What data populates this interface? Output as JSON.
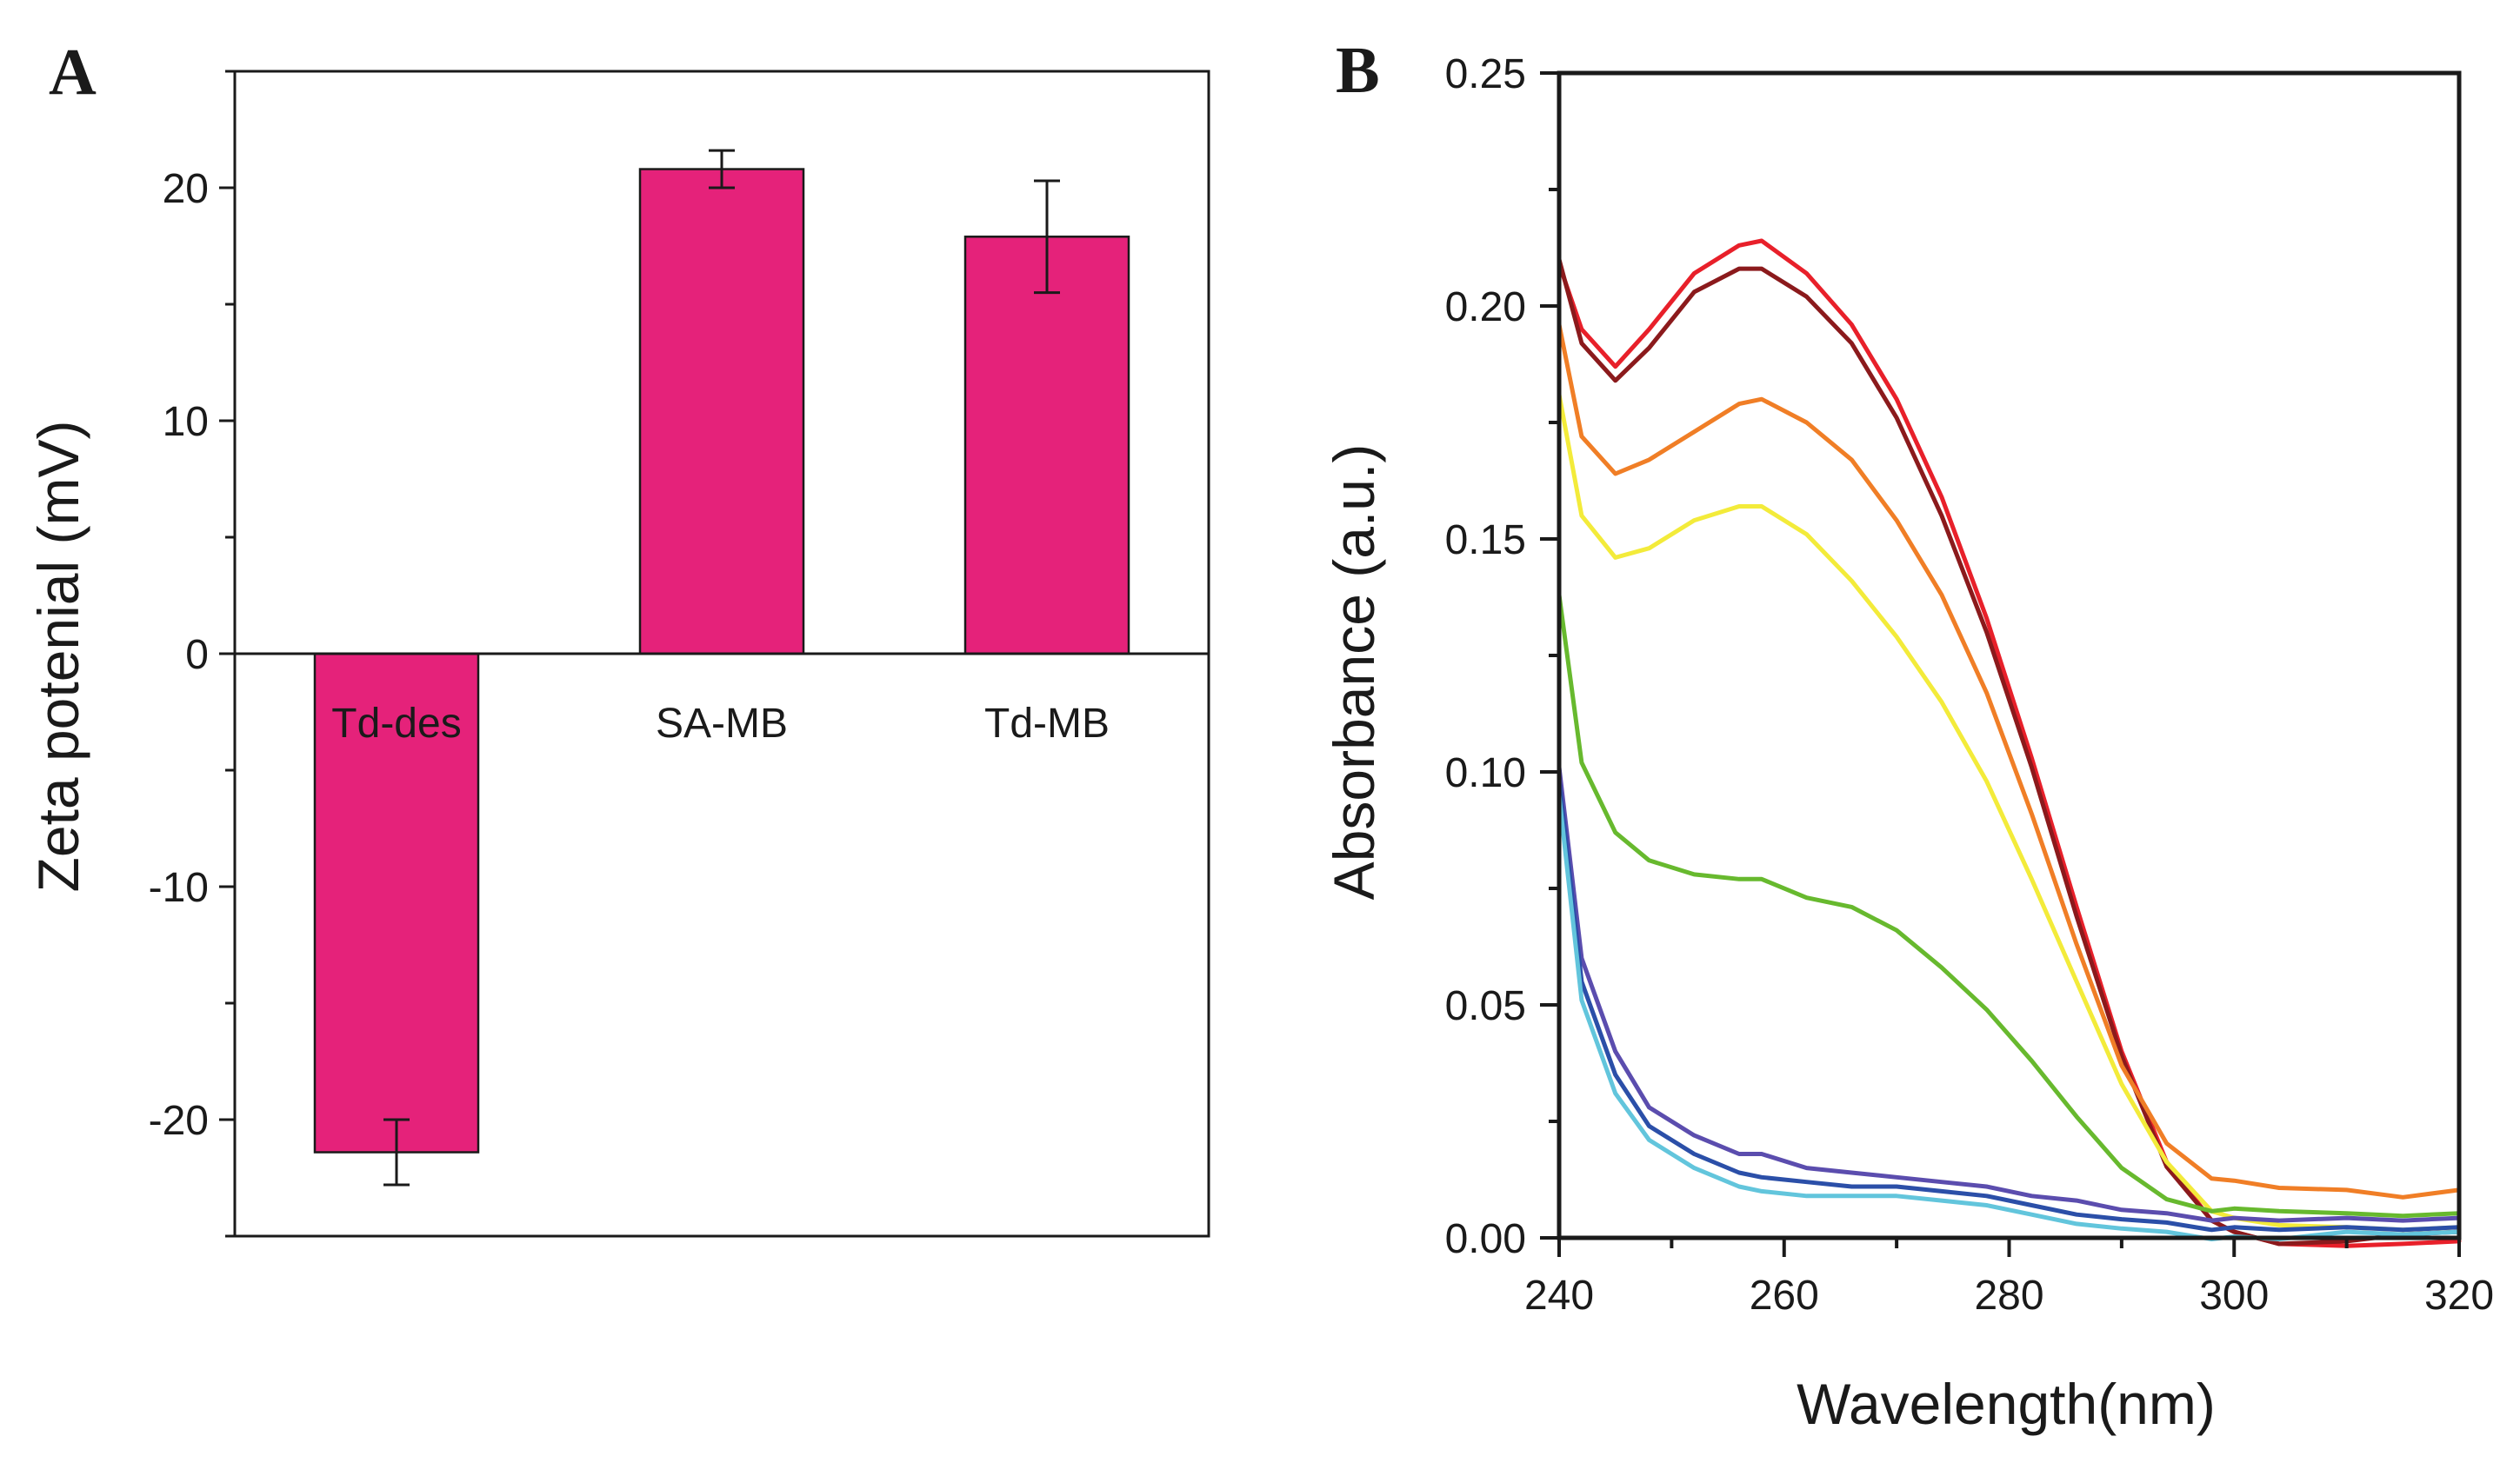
{
  "chart_data": [
    {
      "panel": "A",
      "type": "bar",
      "categories": [
        "Td-des",
        "SA-MB",
        "Td-MB"
      ],
      "values": [
        -21.4,
        20.8,
        17.9
      ],
      "errors": [
        1.4,
        0.8,
        2.4
      ],
      "xlabel": "",
      "ylabel": "Zeta potenial (mV)",
      "ylim": [
        -25,
        25
      ],
      "yticks": [
        -20,
        -10,
        0,
        10,
        20
      ],
      "grid": false,
      "colors": {
        "bar": "#E5227A",
        "axis": "#1a1a1a",
        "category_label_inside_bar": "#ffffff"
      }
    },
    {
      "panel": "B",
      "type": "line",
      "xlabel": "Wavelength(nm)",
      "ylabel": "Absorbance (a.u.)",
      "xlim": [
        240,
        320
      ],
      "ylim": [
        0,
        0.25
      ],
      "xticks": [
        240,
        260,
        280,
        300,
        320
      ],
      "yticks": [
        0.0,
        0.05,
        0.1,
        0.15,
        0.2,
        0.25
      ],
      "ytick_labels": [
        "0.00",
        "0.05",
        "0.10",
        "0.15",
        "0.20",
        "0.25"
      ],
      "grid": false,
      "x": [
        240,
        242,
        245,
        248,
        252,
        256,
        258,
        262,
        266,
        270,
        274,
        278,
        282,
        286,
        290,
        294,
        298,
        300,
        304,
        310,
        315,
        320
      ],
      "series": [
        {
          "name": "red",
          "color": "#E8202A",
          "values": [
            0.209,
            0.195,
            0.187,
            0.195,
            0.207,
            0.213,
            0.214,
            0.207,
            0.196,
            0.18,
            0.159,
            0.133,
            0.103,
            0.071,
            0.04,
            0.016,
            0.004,
            0.001,
            -0.001,
            -0.002,
            -0.001,
            -0.001
          ]
        },
        {
          "name": "dark-red",
          "color": "#8B1A1C",
          "values": [
            0.21,
            0.192,
            0.184,
            0.191,
            0.203,
            0.208,
            0.208,
            0.202,
            0.192,
            0.176,
            0.155,
            0.13,
            0.101,
            0.069,
            0.039,
            0.015,
            0.004,
            0.001,
            -0.001,
            -0.001,
            0.001,
            0.001
          ]
        },
        {
          "name": "orange",
          "color": "#F07E26",
          "values": [
            0.196,
            0.172,
            0.164,
            0.167,
            0.173,
            0.179,
            0.18,
            0.175,
            0.167,
            0.154,
            0.138,
            0.117,
            0.091,
            0.063,
            0.037,
            0.02,
            0.013,
            0.012,
            0.011,
            0.01,
            0.009,
            0.01
          ]
        },
        {
          "name": "yellow",
          "color": "#F3EB3A",
          "values": [
            0.181,
            0.155,
            0.146,
            0.148,
            0.154,
            0.157,
            0.157,
            0.151,
            0.141,
            0.129,
            0.115,
            0.098,
            0.077,
            0.055,
            0.033,
            0.016,
            0.006,
            0.004,
            0.003,
            0.002,
            0.002,
            0.002
          ]
        },
        {
          "name": "green",
          "color": "#67B92E",
          "values": [
            0.138,
            0.102,
            0.087,
            0.081,
            0.078,
            0.077,
            0.077,
            0.073,
            0.071,
            0.066,
            0.058,
            0.049,
            0.038,
            0.026,
            0.015,
            0.008,
            0.006,
            0.006,
            0.006,
            0.005,
            0.005,
            0.005
          ]
        },
        {
          "name": "purple",
          "color": "#5B4DAE",
          "values": [
            0.101,
            0.06,
            0.04,
            0.028,
            0.022,
            0.018,
            0.018,
            0.015,
            0.014,
            0.013,
            0.012,
            0.011,
            0.009,
            0.008,
            0.006,
            0.005,
            0.004,
            0.004,
            0.004,
            0.004,
            0.004,
            0.004
          ]
        },
        {
          "name": "blue",
          "color": "#2B4FA8",
          "values": [
            0.098,
            0.055,
            0.035,
            0.024,
            0.018,
            0.014,
            0.013,
            0.012,
            0.011,
            0.011,
            0.01,
            0.009,
            0.007,
            0.005,
            0.004,
            0.003,
            0.002,
            0.002,
            0.002,
            0.002,
            0.002,
            0.002
          ]
        },
        {
          "name": "cyan",
          "color": "#62C5DC",
          "values": [
            0.095,
            0.051,
            0.031,
            0.021,
            0.015,
            0.011,
            0.01,
            0.009,
            0.009,
            0.009,
            0.008,
            0.007,
            0.005,
            0.003,
            0.002,
            0.001,
            0.0,
            0.0,
            0.0,
            0.001,
            0.001,
            0.001
          ]
        }
      ]
    }
  ]
}
